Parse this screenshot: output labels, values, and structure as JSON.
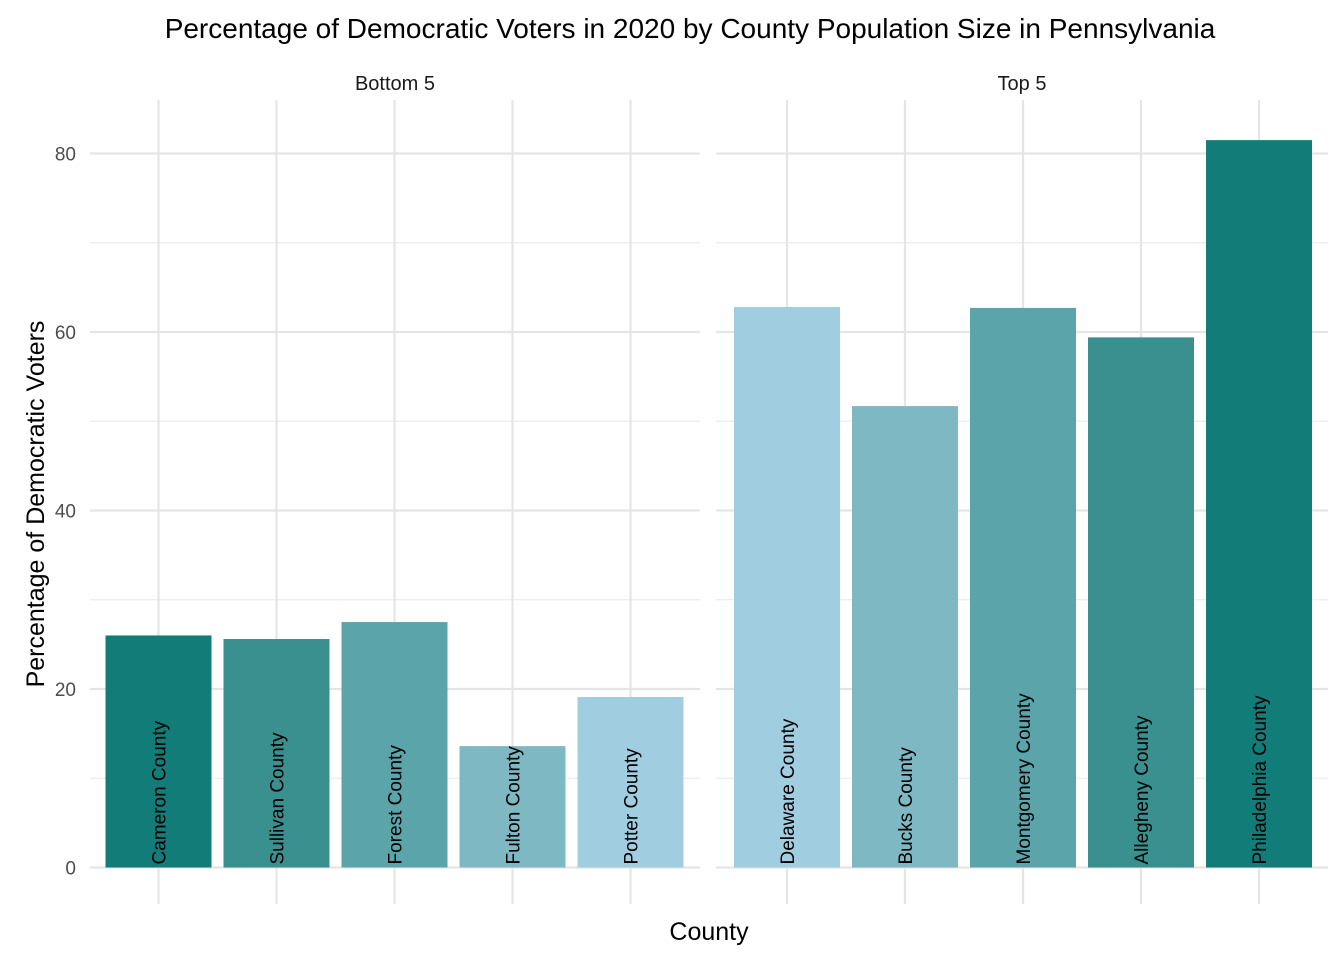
{
  "chart_data": {
    "type": "bar",
    "title": "Percentage of Democratic Voters in 2020 by County Population Size in Pennsylvania",
    "xlabel": "County",
    "ylabel": "Percentage of Democratic Voters",
    "ylim": [
      0,
      85
    ],
    "yticks": [
      "0",
      "20",
      "40",
      "60",
      "80"
    ],
    "grid": true,
    "legend": "none",
    "facets": [
      {
        "name": "Bottom 5",
        "bars": [
          {
            "label": "Cameron County",
            "value": 26.0,
            "color": "#127c78"
          },
          {
            "label": "Sullivan County",
            "value": 25.6,
            "color": "#3a8f8f"
          },
          {
            "label": "Forest County",
            "value": 27.5,
            "color": "#5ba4aa"
          },
          {
            "label": "Fulton County",
            "value": 13.6,
            "color": "#7db8c3"
          },
          {
            "label": "Potter County",
            "value": 19.1,
            "color": "#a0cde0"
          }
        ]
      },
      {
        "name": "Top 5",
        "bars": [
          {
            "label": "Delaware County",
            "value": 62.8,
            "color": "#a0cde0"
          },
          {
            "label": "Bucks County",
            "value": 51.7,
            "color": "#7db8c3"
          },
          {
            "label": "Montgomery County",
            "value": 62.7,
            "color": "#5ba4aa"
          },
          {
            "label": "Allegheny County",
            "value": 59.4,
            "color": "#3a8f8f"
          },
          {
            "label": "Philadelphia County",
            "value": 81.5,
            "color": "#127c78"
          }
        ]
      }
    ]
  }
}
